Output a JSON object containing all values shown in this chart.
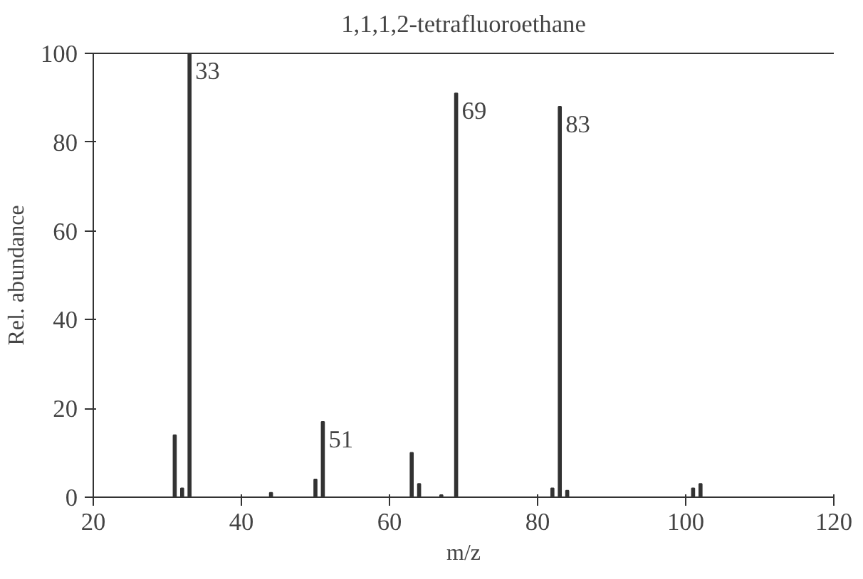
{
  "chart_data": {
    "type": "bar",
    "title": "1,1,1,2-tetrafluoroethane",
    "xlabel": "m/z",
    "ylabel": "Rel. abundance",
    "x": [
      31,
      32,
      33,
      44,
      50,
      51,
      63,
      64,
      67,
      69,
      82,
      83,
      84,
      101,
      102
    ],
    "series": [
      {
        "color": "#333333",
        "values": [
          14,
          2,
          100,
          1,
          4,
          17,
          10,
          3,
          0.5,
          91,
          2,
          88,
          1.5,
          2,
          3
        ]
      }
    ],
    "xlim": [
      20,
      120
    ],
    "xticks": [
      20,
      40,
      60,
      80,
      100,
      120
    ],
    "ylim": [
      0,
      100
    ],
    "yticks": [
      0,
      20,
      40,
      60,
      80,
      100
    ],
    "annotations": [
      {
        "text": "33",
        "x": 33,
        "y": 100
      },
      {
        "text": "51",
        "x": 51,
        "y": 17
      },
      {
        "text": "69",
        "x": 69,
        "y": 91
      },
      {
        "text": "83",
        "x": 83,
        "y": 88
      }
    ],
    "grid": false
  }
}
